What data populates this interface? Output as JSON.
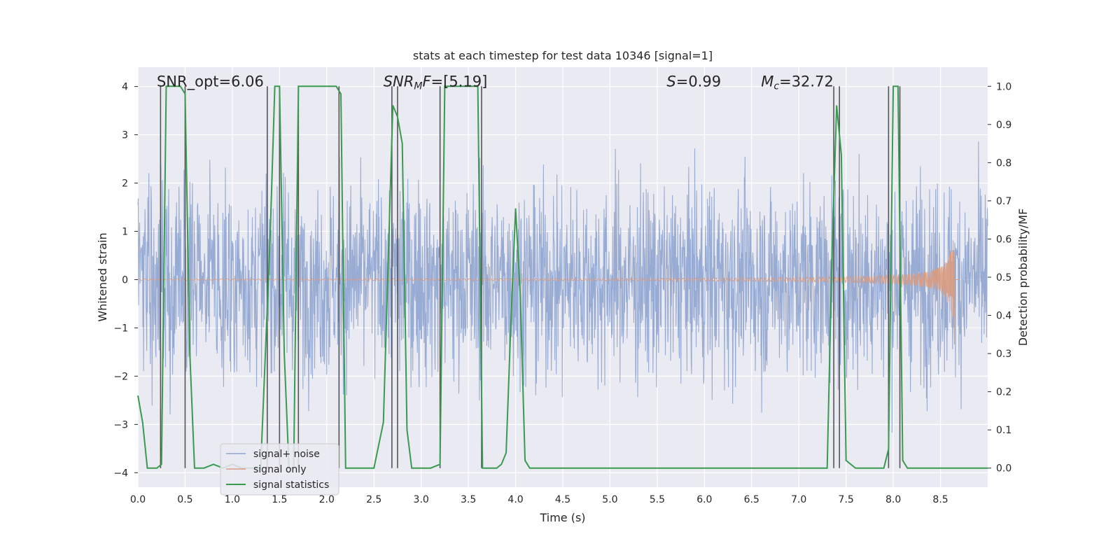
{
  "chart_data": {
    "type": "line",
    "title": "stats at each timestep for test data 10346 [signal=1]",
    "xlabel": "Time (s)",
    "ylabel": "Whitened strain",
    "y2label": "Detection probability/MF",
    "xlim": [
      0.0,
      9.0
    ],
    "ylim": [
      -4.3,
      4.4
    ],
    "y2lim": [
      -0.05,
      1.05
    ],
    "xticks": [
      "0.0",
      "0.5",
      "1.0",
      "1.5",
      "2.0",
      "2.5",
      "3.0",
      "3.5",
      "4.0",
      "4.5",
      "5.0",
      "5.5",
      "6.0",
      "6.5",
      "7.0",
      "7.5",
      "8.0",
      "8.5"
    ],
    "yticks": [
      "4",
      "3",
      "2",
      "1",
      "0",
      "−1",
      "−2",
      "−3",
      "−4"
    ],
    "y2ticks": [
      "1.0",
      "0.9",
      "0.8",
      "0.7",
      "0.6",
      "0.5",
      "0.4",
      "0.3",
      "0.2",
      "0.1",
      "0.0"
    ],
    "grid": true,
    "legend_position": "bottom-left",
    "annotations": [
      {
        "html": "SNR_opt=6.06",
        "x": 0.2,
        "y": 4.0
      },
      {
        "html": "<tspan font-style='italic'>SNR</tspan><tspan font-style='italic' font-size='14' dy='4'>M</tspan><tspan font-style='italic' dy='-4'>F</tspan>=[5.19]",
        "x": 2.6,
        "y": 4.0
      },
      {
        "html": "<tspan font-style='italic'>S</tspan>=0.99",
        "x": 5.6,
        "y": 4.0
      },
      {
        "html": "<tspan font-style='italic'>M</tspan><tspan font-style='italic' font-size='14' dy='4'>c</tspan><tspan dy='-4'>=32.72</tspan>",
        "x": 6.6,
        "y": 4.0
      }
    ],
    "series": [
      {
        "name": "signal+ noise",
        "color": "#8fa4cf",
        "kind": "noise",
        "amplitude_sigma": 1.0,
        "x_range": [
          0.0,
          9.0
        ]
      },
      {
        "name": "signal only",
        "color": "#d99b80",
        "kind": "chirp",
        "t_merge": 8.65,
        "max_amplitude": 1.5,
        "x_range": [
          0.0,
          8.7
        ]
      },
      {
        "name": "signal statistics",
        "color": "#3a9a4f",
        "axis": "right",
        "x": [
          0.0,
          0.05,
          0.1,
          0.2,
          0.25,
          0.3,
          0.35,
          0.45,
          0.5,
          0.55,
          0.6,
          0.7,
          0.8,
          0.9,
          1.0,
          1.1,
          1.2,
          1.3,
          1.4,
          1.45,
          1.5,
          1.55,
          1.6,
          1.65,
          1.7,
          1.75,
          1.8,
          1.9,
          2.0,
          2.1,
          2.15,
          2.2,
          2.3,
          2.4,
          2.5,
          2.6,
          2.7,
          2.75,
          2.8,
          2.85,
          2.9,
          3.0,
          3.1,
          3.2,
          3.25,
          3.3,
          3.4,
          3.5,
          3.6,
          3.65,
          3.7,
          3.75,
          3.8,
          3.85,
          3.9,
          3.95,
          4.0,
          4.05,
          4.1,
          4.15,
          4.2,
          4.5,
          5.0,
          5.5,
          5.6,
          6.0,
          6.5,
          7.0,
          7.3,
          7.35,
          7.4,
          7.45,
          7.5,
          7.6,
          7.7,
          7.9,
          7.95,
          8.0,
          8.05,
          8.1,
          8.15,
          8.2,
          8.5,
          9.0
        ],
        "y": [
          0.19,
          0.12,
          0.0,
          0.0,
          0.01,
          1.0,
          1.0,
          1.0,
          0.98,
          0.3,
          0.0,
          0.0,
          0.01,
          0.0,
          0.01,
          0.0,
          0.0,
          0.0,
          0.6,
          1.0,
          1.0,
          0.3,
          0.0,
          0.0,
          1.0,
          1.0,
          1.0,
          1.0,
          1.0,
          1.0,
          0.98,
          0.0,
          0.0,
          0.0,
          0.0,
          0.12,
          0.95,
          0.92,
          0.85,
          0.1,
          0.0,
          0.0,
          0.0,
          0.01,
          1.0,
          1.0,
          1.0,
          1.0,
          1.0,
          0.0,
          0.0,
          0.0,
          0.0,
          0.01,
          0.04,
          0.38,
          0.68,
          0.45,
          0.02,
          0.0,
          0.0,
          0.0,
          0.0,
          0.0,
          0.0,
          0.0,
          0.0,
          0.0,
          0.0,
          0.55,
          0.95,
          0.82,
          0.02,
          0.0,
          0.0,
          0.0,
          0.05,
          1.0,
          1.0,
          0.02,
          0.0,
          0.0,
          0.0,
          0.0
        ]
      }
    ],
    "vlines": {
      "color": "#555555",
      "x": [
        0.24,
        0.5,
        1.37,
        1.5,
        1.7,
        2.13,
        2.69,
        2.75,
        3.2,
        3.64,
        7.37,
        7.43,
        7.95,
        8.07
      ]
    }
  }
}
